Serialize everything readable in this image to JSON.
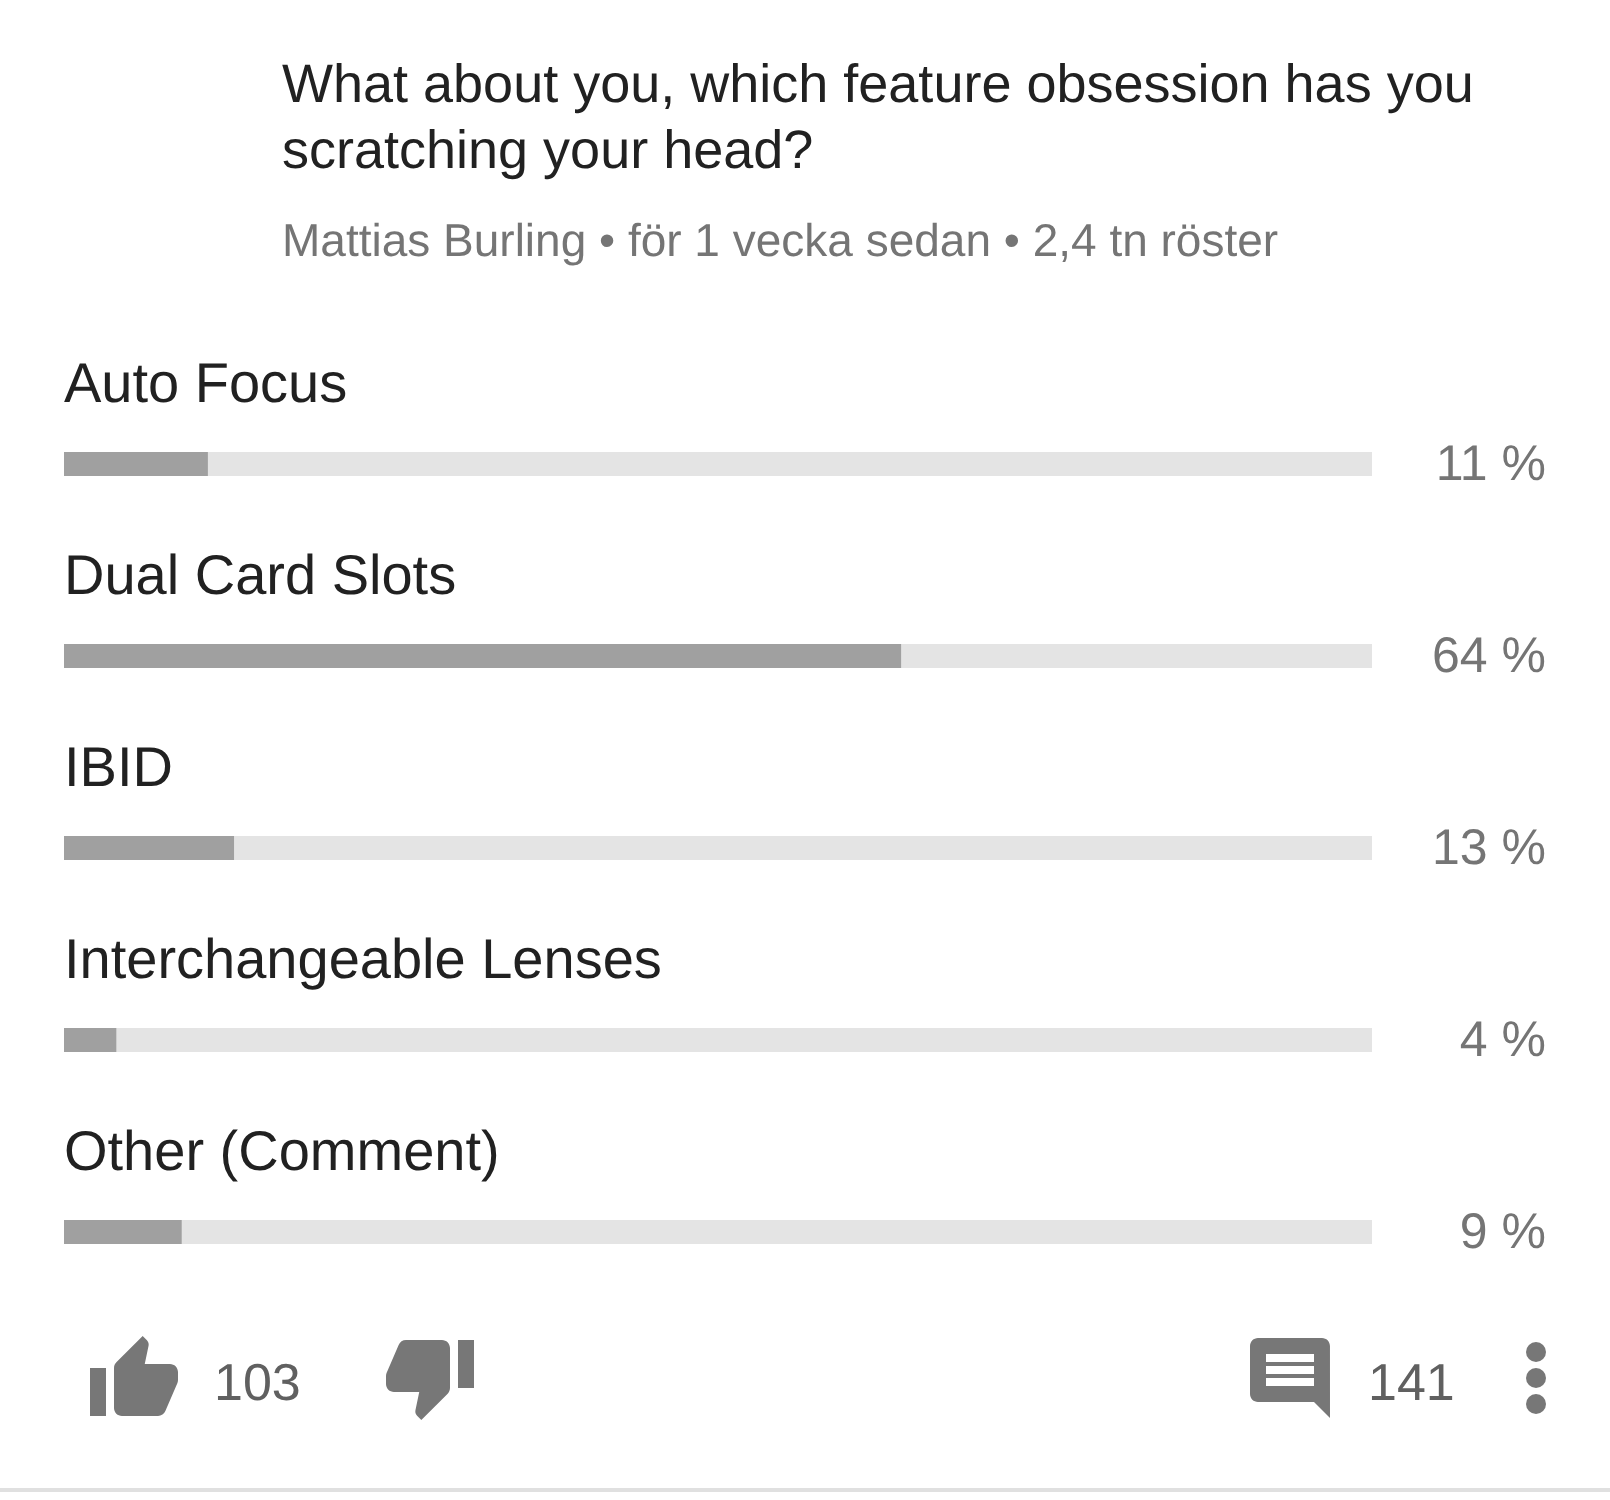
{
  "chart_data": {
    "type": "bar",
    "orientation": "horizontal",
    "title": "What about you, which feature obsession has you scratching your head?",
    "subtitle": "Mattias Burling • för 1 vecka sedan • 2,4 tn röster",
    "categories": [
      "Auto Focus",
      "Dual Card Slots",
      "IBID",
      "Interchangeable Lenses",
      "Other (Comment)"
    ],
    "values": [
      11,
      64,
      13,
      4,
      9
    ],
    "value_labels": [
      "11 %",
      "64 %",
      "13 %",
      "4 %",
      "9 %"
    ],
    "color": "#a0a0a0",
    "xlim": [
      0,
      100
    ],
    "tick_labels": "y",
    "annotations": [
      "103",
      "141"
    ]
  }
}
